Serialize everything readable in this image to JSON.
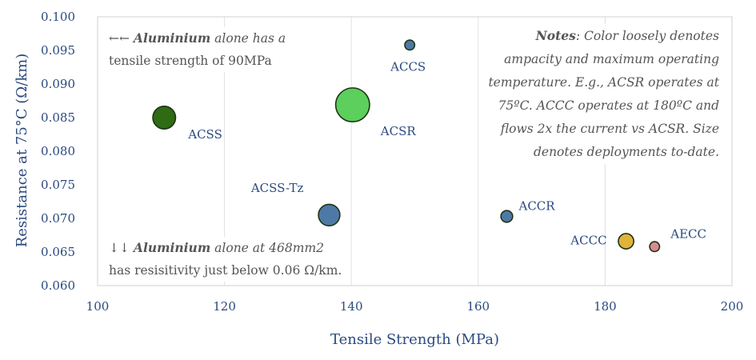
{
  "chart_data": {
    "type": "scatter",
    "xlabel": "Tensile Strength (MPa)",
    "ylabel": "Resistance at 75°C (Ω/km)",
    "xlim": [
      100,
      200
    ],
    "ylim": [
      0.06,
      0.1
    ],
    "xticks": [
      "100",
      "120",
      "140",
      "160",
      "180",
      "200"
    ],
    "yticks": [
      "0.060",
      "0.065",
      "0.070",
      "0.075",
      "0.080",
      "0.085",
      "0.090",
      "0.095",
      "0.100"
    ],
    "grid": "vertical",
    "points": [
      {
        "label": "ACCS",
        "x": 149.2,
        "y": 0.0958,
        "size": 1,
        "color": "#4e79a7"
      },
      {
        "label": "ACSS",
        "x": 110.5,
        "y": 0.085,
        "size": 4.5,
        "color": "#2e6b12"
      },
      {
        "label": "ACSR",
        "x": 140.2,
        "y": 0.0869,
        "size": 10,
        "color": "#5ccf5c"
      },
      {
        "label": "ACSS-Tz",
        "x": 136.5,
        "y": 0.0705,
        "size": 4,
        "color": "#4e79a7"
      },
      {
        "label": "ACCR",
        "x": 164.5,
        "y": 0.0703,
        "size": 1.4,
        "color": "#4e79a7"
      },
      {
        "label": "ACCC",
        "x": 183.3,
        "y": 0.0666,
        "size": 2.4,
        "color": "#e0b43a"
      },
      {
        "label": "AECC",
        "x": 187.8,
        "y": 0.0658,
        "size": 1,
        "color": "#d98a8f"
      }
    ],
    "annotations": {
      "top_left": {
        "arrow": "←←",
        "bold": "Aluminium",
        "rest1": " alone has a",
        "line2": "tensile strength of 90MPa"
      },
      "bottom_left": {
        "arrow": "↓↓",
        "bold": "Aluminium",
        "rest1": " alone at 468mm2",
        "line2": "has resisitivity just below 0.06 Ω/km."
      },
      "notes": {
        "bold": "Notes",
        "lines": [
          ": Color loosely denotes",
          "ampacity and maximum operating",
          "temperature. E.g., ACSR operates at",
          "75ºC. ACCC operates at 180ºC and",
          "flows 2x the current vs ACSR. Size",
          "denotes deployments to-date."
        ]
      }
    }
  }
}
